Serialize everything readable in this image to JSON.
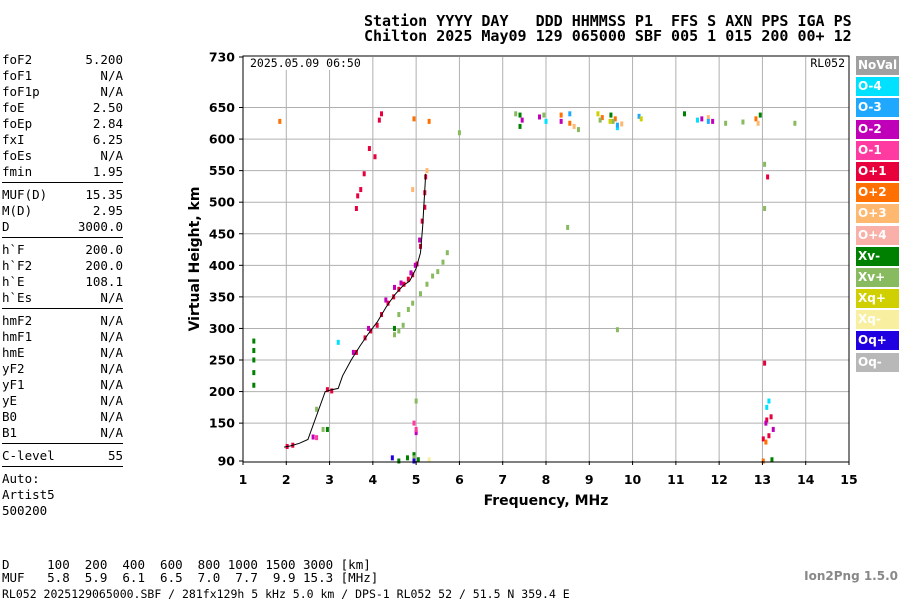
{
  "header": {
    "line1": "Station YYYY DAY   DDD HHMMSS P1  FFS S AXN PPS IGA PS",
    "line2": "Chilton 2025 May09 129 065000 SBF 005 1 015 200 00+ 12"
  },
  "params": {
    "group1": [
      {
        "k": "foF2",
        "v": "5.200"
      },
      {
        "k": "foF1",
        "v": "N/A"
      },
      {
        "k": "foF1p",
        "v": "N/A"
      },
      {
        "k": "foE",
        "v": "2.50"
      },
      {
        "k": "foEp",
        "v": "2.84"
      },
      {
        "k": "fxI",
        "v": "6.25"
      },
      {
        "k": "foEs",
        "v": "N/A"
      },
      {
        "k": "fmin",
        "v": "1.95"
      }
    ],
    "group2": [
      {
        "k": "MUF(D)",
        "v": "15.35"
      },
      {
        "k": "M(D)",
        "v": "2.95"
      },
      {
        "k": "D",
        "v": "3000.0"
      }
    ],
    "group3": [
      {
        "k": "h`F",
        "v": "200.0"
      },
      {
        "k": "h`F2",
        "v": "200.0"
      },
      {
        "k": "h`E",
        "v": "108.1"
      },
      {
        "k": "h`Es",
        "v": "N/A"
      }
    ],
    "group4": [
      {
        "k": "hmF2",
        "v": "N/A"
      },
      {
        "k": "hmF1",
        "v": "N/A"
      },
      {
        "k": "hmE",
        "v": "N/A"
      },
      {
        "k": "yF2",
        "v": "N/A"
      },
      {
        "k": "yF1",
        "v": "N/A"
      },
      {
        "k": "yE",
        "v": "N/A"
      },
      {
        "k": "B0",
        "v": "N/A"
      },
      {
        "k": "B1",
        "v": "N/A"
      }
    ],
    "group5": [
      {
        "k": "C-level",
        "v": "55"
      }
    ],
    "auto_label": "Auto:",
    "auto_lines": [
      "Artist5",
      "500200"
    ]
  },
  "muf_table": {
    "d_row": "D     100  200  400  600  800 1000 1500 3000 [km]",
    "muf_row": "MUF   5.8  5.9  6.1  6.5  7.0  7.7  9.9 15.3 [MHz]"
  },
  "footer": "RL052 2025129065000.SBF / 281fx129h 5 kHz 5.0 km / DPS-1 RL052 52 / 51.5 N 359.4 E",
  "version": "Ion2Png 1.5.0",
  "legend": [
    {
      "label": "NoVal",
      "color": "#a0a0a0"
    },
    {
      "label": "O-4",
      "color": "#00e0ff"
    },
    {
      "label": "O-3",
      "color": "#20a8ff"
    },
    {
      "label": "O-2",
      "color": "#c000b8"
    },
    {
      "label": "O-1",
      "color": "#ff3aa0"
    },
    {
      "label": "O+1",
      "color": "#e8003c"
    },
    {
      "label": "O+2",
      "color": "#ff7000"
    },
    {
      "label": "O+3",
      "color": "#ffb870"
    },
    {
      "label": "O+4",
      "color": "#f8b0a8"
    },
    {
      "label": "Xv-",
      "color": "#008000"
    },
    {
      "label": "Xv+",
      "color": "#88bb60"
    },
    {
      "label": "Xq+",
      "color": "#d0d000"
    },
    {
      "label": "Xq-",
      "color": "#f8f0a0"
    },
    {
      "label": "Oq+",
      "color": "#2000e0"
    },
    {
      "label": "Oq-",
      "color": "#b8b8b8"
    }
  ],
  "chart_data": {
    "type": "scatter",
    "title": "",
    "xlabel": "Frequency, MHz",
    "ylabel": "Virtual Height, km",
    "xlim": [
      1,
      15
    ],
    "ylim": [
      90,
      730
    ],
    "x_ticks": [
      1,
      2,
      3,
      4,
      5,
      6,
      7,
      8,
      9,
      10,
      11,
      12,
      13,
      14,
      15
    ],
    "y_ticks": [
      90,
      150,
      200,
      250,
      300,
      350,
      400,
      450,
      500,
      550,
      600,
      650,
      730
    ],
    "grid": true,
    "timestamp_label": "2025.05.09 06:50",
    "station_label": "RL052",
    "trace": {
      "name": "trace",
      "points": [
        [
          1.95,
          112
        ],
        [
          2.1,
          114
        ],
        [
          2.3,
          118
        ],
        [
          2.5,
          124
        ],
        [
          2.9,
          200
        ],
        [
          3.05,
          203
        ],
        [
          3.2,
          205
        ],
        [
          3.3,
          225
        ],
        [
          3.5,
          250
        ],
        [
          3.7,
          272
        ],
        [
          3.9,
          292
        ],
        [
          4.1,
          310
        ],
        [
          4.3,
          333
        ],
        [
          4.5,
          353
        ],
        [
          4.7,
          368
        ],
        [
          4.85,
          375
        ],
        [
          5.0,
          395
        ],
        [
          5.1,
          420
        ],
        [
          5.15,
          460
        ],
        [
          5.2,
          520
        ],
        [
          5.22,
          545
        ]
      ]
    },
    "echoes": [
      {
        "series": "O+1",
        "points": [
          [
            2.02,
            113
          ],
          [
            2.15,
            115
          ],
          [
            2.95,
            203
          ],
          [
            3.05,
            201
          ],
          [
            3.62,
            262
          ],
          [
            3.82,
            285
          ],
          [
            3.95,
            296
          ],
          [
            4.1,
            305
          ],
          [
            4.2,
            322
          ],
          [
            4.35,
            340
          ],
          [
            4.48,
            350
          ],
          [
            4.6,
            362
          ],
          [
            4.72,
            370
          ],
          [
            4.82,
            378
          ],
          [
            4.92,
            385
          ],
          [
            5.02,
            402
          ],
          [
            5.1,
            430
          ],
          [
            5.14,
            470
          ],
          [
            5.2,
            492
          ],
          [
            5.2,
            515
          ],
          [
            5.22,
            540
          ],
          [
            3.62,
            490
          ],
          [
            3.65,
            510
          ],
          [
            3.72,
            520
          ],
          [
            3.8,
            545
          ],
          [
            3.92,
            585
          ],
          [
            4.05,
            572
          ],
          [
            4.15,
            630
          ],
          [
            4.2,
            640
          ],
          [
            13.05,
            245
          ],
          [
            13.1,
            155
          ],
          [
            13.15,
            130
          ],
          [
            13.2,
            160
          ],
          [
            13.02,
            125
          ],
          [
            13.12,
            540
          ]
        ]
      },
      {
        "series": "O-2",
        "points": [
          [
            2.62,
            128
          ],
          [
            3.55,
            262
          ],
          [
            3.9,
            300
          ],
          [
            4.3,
            345
          ],
          [
            4.5,
            365
          ],
          [
            4.65,
            372
          ],
          [
            4.88,
            388
          ],
          [
            4.98,
            400
          ],
          [
            5.08,
            440
          ],
          [
            7.45,
            630
          ],
          [
            7.85,
            635
          ],
          [
            8.35,
            628
          ],
          [
            11.6,
            632
          ],
          [
            11.85,
            628
          ],
          [
            13.25,
            140
          ],
          [
            13.08,
            150
          ],
          [
            5.0,
            135
          ]
        ]
      },
      {
        "series": "O+2",
        "points": [
          [
            1.85,
            628
          ],
          [
            4.95,
            632
          ],
          [
            5.3,
            628
          ],
          [
            8.35,
            638
          ],
          [
            8.55,
            625
          ],
          [
            9.3,
            634
          ],
          [
            9.6,
            632
          ],
          [
            12.85,
            632
          ],
          [
            13.02,
            90
          ],
          [
            13.08,
            120
          ]
        ]
      },
      {
        "series": "O+3",
        "points": [
          [
            4.92,
            520
          ],
          [
            5.25,
            550
          ],
          [
            8.65,
            620
          ],
          [
            9.75,
            624
          ],
          [
            11.75,
            634
          ],
          [
            12.9,
            625
          ]
        ]
      },
      {
        "series": "O-4",
        "points": [
          [
            3.2,
            278
          ],
          [
            8.0,
            628
          ],
          [
            9.65,
            618
          ],
          [
            11.5,
            630
          ],
          [
            13.1,
            175
          ],
          [
            13.15,
            185
          ]
        ]
      },
      {
        "series": "O-3",
        "points": [
          [
            8.55,
            640
          ],
          [
            9.65,
            622
          ],
          [
            10.15,
            636
          ],
          [
            11.75,
            628
          ]
        ]
      },
      {
        "series": "O-1",
        "points": [
          [
            4.95,
            150
          ],
          [
            5.0,
            140
          ],
          [
            2.7,
            127
          ]
        ]
      },
      {
        "series": "Xv-",
        "points": [
          [
            1.25,
            210
          ],
          [
            1.25,
            230
          ],
          [
            1.25,
            250
          ],
          [
            1.25,
            265
          ],
          [
            1.25,
            280
          ],
          [
            2.95,
            140
          ],
          [
            4.6,
            90
          ],
          [
            4.8,
            95
          ],
          [
            4.95,
            100
          ],
          [
            5.05,
            92
          ],
          [
            7.4,
            620
          ],
          [
            7.4,
            638
          ],
          [
            9.5,
            638
          ],
          [
            11.2,
            640
          ],
          [
            12.95,
            638
          ],
          [
            13.22,
            92
          ],
          [
            4.5,
            300
          ]
        ]
      },
      {
        "series": "Xv+",
        "points": [
          [
            2.7,
            172
          ],
          [
            2.85,
            140
          ],
          [
            4.5,
            290
          ],
          [
            4.6,
            296
          ],
          [
            4.7,
            305
          ],
          [
            4.82,
            330
          ],
          [
            4.92,
            340
          ],
          [
            5.1,
            355
          ],
          [
            5.25,
            370
          ],
          [
            5.38,
            383
          ],
          [
            5.5,
            390
          ],
          [
            5.62,
            405
          ],
          [
            5.72,
            420
          ],
          [
            4.6,
            322
          ],
          [
            6.0,
            610
          ],
          [
            7.3,
            640
          ],
          [
            7.95,
            638
          ],
          [
            8.5,
            460
          ],
          [
            8.75,
            615
          ],
          [
            9.25,
            630
          ],
          [
            9.55,
            628
          ],
          [
            12.15,
            625
          ],
          [
            12.55,
            627
          ],
          [
            13.05,
            560
          ],
          [
            13.05,
            490
          ],
          [
            13.75,
            625
          ],
          [
            9.65,
            298
          ],
          [
            5.0,
            185
          ],
          [
            4.95,
            95
          ]
        ]
      },
      {
        "series": "Xq+",
        "points": [
          [
            9.2,
            640
          ],
          [
            9.48,
            628
          ],
          [
            10.2,
            632
          ]
        ]
      },
      {
        "series": "Xq-",
        "points": [
          [
            5.3,
            92
          ]
        ]
      },
      {
        "series": "Oq+",
        "points": [
          [
            4.45,
            95
          ],
          [
            4.95,
            90
          ]
        ]
      }
    ]
  }
}
